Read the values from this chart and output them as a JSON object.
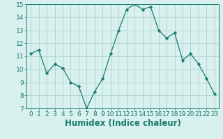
{
  "x": [
    0,
    1,
    2,
    3,
    4,
    5,
    6,
    7,
    8,
    9,
    10,
    11,
    12,
    13,
    14,
    15,
    16,
    17,
    18,
    19,
    20,
    21,
    22,
    23
  ],
  "y": [
    11.2,
    11.5,
    9.7,
    10.4,
    10.1,
    9.0,
    8.7,
    7.0,
    8.3,
    9.3,
    11.2,
    13.0,
    14.6,
    15.0,
    14.6,
    14.8,
    13.0,
    12.4,
    12.8,
    10.7,
    11.2,
    10.4,
    9.3,
    8.1
  ],
  "xlabel": "Humidex (Indice chaleur)",
  "ylim": [
    7,
    15
  ],
  "xlim_min": -0.5,
  "xlim_max": 23.5,
  "yticks": [
    7,
    8,
    9,
    10,
    11,
    12,
    13,
    14,
    15
  ],
  "xticks": [
    0,
    1,
    2,
    3,
    4,
    5,
    6,
    7,
    8,
    9,
    10,
    11,
    12,
    13,
    14,
    15,
    16,
    17,
    18,
    19,
    20,
    21,
    22,
    23
  ],
  "line_color": "#1a7a6e",
  "marker": "D",
  "marker_size": 2.2,
  "bg_color": "#d8f0ee",
  "grid_color": "#aad4ce",
  "tick_label_size": 6.5,
  "xlabel_size": 8.5,
  "xlabel_weight": "bold",
  "linewidth": 0.9
}
